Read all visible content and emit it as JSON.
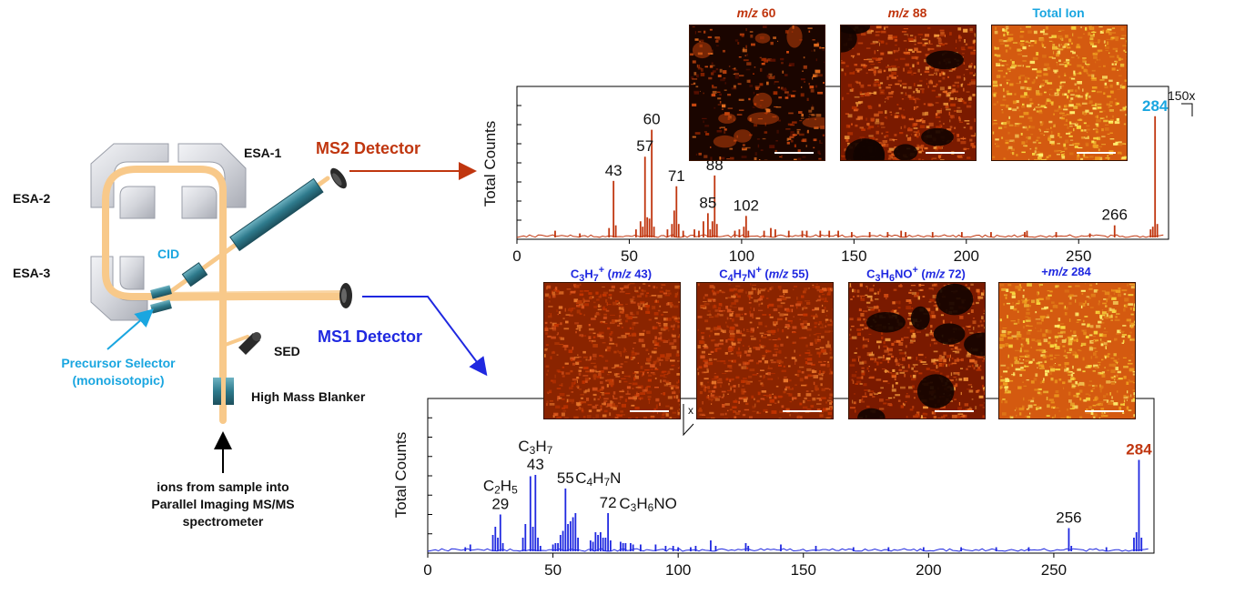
{
  "colors": {
    "ms2": "#c0360f",
    "ms1": "#1f28e0",
    "cyan": "#1aa6e0",
    "beam": "#f8c98a",
    "esa": "#d4d6dc",
    "detector": "#2e7a8c"
  },
  "instrument": {
    "esa1": "ESA-1",
    "esa2": "ESA-2",
    "esa3": "ESA-3",
    "cid": "CID",
    "ms2_detector": "MS2 Detector",
    "ms1_detector": "MS1 Detector",
    "sed": "SED",
    "high_mass_blanker": "High Mass Blanker",
    "precursor_selector_1": "Precursor Selector",
    "precursor_selector_2": "(monoisotopic)",
    "ions_caption_1": "ions from sample into",
    "ions_caption_2": "Parallel Imaging MS/MS",
    "ions_caption_3": "spectrometer"
  },
  "ms2_images": [
    {
      "title_pre": "",
      "title_it": "m/z",
      "title_post": " 60",
      "style": "sparse"
    },
    {
      "title_pre": "",
      "title_it": "m/z",
      "title_post": " 88",
      "style": "holes"
    },
    {
      "title_pre": "",
      "title_it": "",
      "title_post": "Total Ion",
      "style": "bright"
    }
  ],
  "ms1_images": [
    {
      "title_html": "C<sub>3</sub>H<sub>7</sub><sup>+</sup> (<i>m/z</i> 43)",
      "style": "dense"
    },
    {
      "title_html": "C<sub>4</sub>H<sub>7</sub>N<sup>+</sup> (<i>m/z</i> 55)",
      "style": "dense"
    },
    {
      "title_html": "C<sub>3</sub>H<sub>6</sub>NO<sup>+</sup> (<i>m/z</i> 72)",
      "style": "holes"
    },
    {
      "title_html": "+<i>m/z</i> 284",
      "style": "bright"
    }
  ],
  "chart_data": [
    {
      "type": "line",
      "name": "MS2",
      "ylabel": "Total Counts",
      "xlim": [
        0,
        290
      ],
      "xticks": [
        0,
        50,
        100,
        150,
        200,
        250
      ],
      "scale_note": "150x",
      "peaks": [
        [
          17,
          0.05
        ],
        [
          28,
          0.03
        ],
        [
          41,
          0.07
        ],
        [
          43,
          0.42
        ],
        [
          44,
          0.09
        ],
        [
          53,
          0.06
        ],
        [
          55,
          0.12
        ],
        [
          56,
          0.08
        ],
        [
          57,
          0.6
        ],
        [
          58,
          0.15
        ],
        [
          59,
          0.14
        ],
        [
          60,
          0.8
        ],
        [
          61,
          0.08
        ],
        [
          67,
          0.06
        ],
        [
          69,
          0.1
        ],
        [
          70,
          0.2
        ],
        [
          71,
          0.38
        ],
        [
          72,
          0.1
        ],
        [
          74,
          0.05
        ],
        [
          79,
          0.06
        ],
        [
          81,
          0.05
        ],
        [
          83,
          0.12
        ],
        [
          85,
          0.18
        ],
        [
          86,
          0.06
        ],
        [
          87,
          0.12
        ],
        [
          88,
          0.46
        ],
        [
          89,
          0.1
        ],
        [
          97,
          0.05
        ],
        [
          99,
          0.06
        ],
        [
          101,
          0.08
        ],
        [
          102,
          0.16
        ],
        [
          103,
          0.05
        ],
        [
          110,
          0.05
        ],
        [
          113,
          0.07
        ],
        [
          115,
          0.06
        ],
        [
          121,
          0.05
        ],
        [
          127,
          0.05
        ],
        [
          129,
          0.05
        ],
        [
          135,
          0.05
        ],
        [
          139,
          0.05
        ],
        [
          143,
          0.05
        ],
        [
          149,
          0.04
        ],
        [
          157,
          0.04
        ],
        [
          165,
          0.04
        ],
        [
          171,
          0.05
        ],
        [
          173,
          0.04
        ],
        [
          185,
          0.04
        ],
        [
          198,
          0.04
        ],
        [
          211,
          0.04
        ],
        [
          226,
          0.04
        ],
        [
          227,
          0.05
        ],
        [
          240,
          0.04
        ],
        [
          255,
          0.03
        ],
        [
          266,
          0.09
        ],
        [
          282,
          0.06
        ],
        [
          283,
          0.08
        ],
        [
          284,
          0.9
        ],
        [
          285,
          0.1
        ]
      ],
      "labels": [
        {
          "x": 43,
          "text": "43"
        },
        {
          "x": 57,
          "text": "57"
        },
        {
          "x": 60,
          "text": "60"
        },
        {
          "x": 71,
          "text": "71"
        },
        {
          "x": 85,
          "text": "85"
        },
        {
          "x": 88,
          "text": "88"
        },
        {
          "x": 102,
          "text": "102"
        },
        {
          "x": 266,
          "text": "266"
        },
        {
          "x": 284,
          "text": "284"
        }
      ]
    },
    {
      "type": "line",
      "name": "MS1",
      "ylabel": "Total Counts",
      "xlim": [
        0,
        290
      ],
      "xticks": [
        0,
        50,
        100,
        150,
        200,
        250
      ],
      "scale_note": "x",
      "peaks": [
        [
          15,
          0.03
        ],
        [
          17,
          0.05
        ],
        [
          26,
          0.12
        ],
        [
          27,
          0.18
        ],
        [
          28,
          0.1
        ],
        [
          29,
          0.27
        ],
        [
          30,
          0.06
        ],
        [
          38,
          0.1
        ],
        [
          39,
          0.2
        ],
        [
          41,
          0.55
        ],
        [
          42,
          0.18
        ],
        [
          43,
          0.56
        ],
        [
          44,
          0.1
        ],
        [
          45,
          0.04
        ],
        [
          50,
          0.05
        ],
        [
          51,
          0.06
        ],
        [
          52,
          0.06
        ],
        [
          53,
          0.12
        ],
        [
          54,
          0.15
        ],
        [
          55,
          0.46
        ],
        [
          56,
          0.2
        ],
        [
          57,
          0.22
        ],
        [
          58,
          0.25
        ],
        [
          59,
          0.28
        ],
        [
          60,
          0.1
        ],
        [
          65,
          0.08
        ],
        [
          66,
          0.07
        ],
        [
          67,
          0.14
        ],
        [
          68,
          0.12
        ],
        [
          69,
          0.14
        ],
        [
          70,
          0.1
        ],
        [
          71,
          0.1
        ],
        [
          72,
          0.28
        ],
        [
          73,
          0.08
        ],
        [
          77,
          0.07
        ],
        [
          78,
          0.06
        ],
        [
          79,
          0.06
        ],
        [
          81,
          0.06
        ],
        [
          82,
          0.05
        ],
        [
          85,
          0.05
        ],
        [
          91,
          0.05
        ],
        [
          95,
          0.04
        ],
        [
          98,
          0.04
        ],
        [
          100,
          0.03
        ],
        [
          105,
          0.03
        ],
        [
          107,
          0.04
        ],
        [
          113,
          0.08
        ],
        [
          115,
          0.04
        ],
        [
          127,
          0.06
        ],
        [
          128,
          0.04
        ],
        [
          141,
          0.05
        ],
        [
          155,
          0.04
        ],
        [
          170,
          0.03
        ],
        [
          184,
          0.03
        ],
        [
          198,
          0.03
        ],
        [
          213,
          0.03
        ],
        [
          227,
          0.03
        ],
        [
          240,
          0.03
        ],
        [
          256,
          0.17
        ],
        [
          257,
          0.04
        ],
        [
          271,
          0.03
        ],
        [
          282,
          0.1
        ],
        [
          283,
          0.14
        ],
        [
          284,
          0.67
        ],
        [
          285,
          0.1
        ]
      ],
      "labels": [
        {
          "x": 29,
          "text": "29",
          "formula": "C2H5"
        },
        {
          "x": 43,
          "text": "43",
          "formula": "C3H7"
        },
        {
          "x": 55,
          "text": "55",
          "formula": "C4H7N"
        },
        {
          "x": 72,
          "text": "72",
          "formula": "C3H6NO"
        },
        {
          "x": 256,
          "text": "256"
        },
        {
          "x": 284,
          "text": "284"
        }
      ]
    }
  ]
}
